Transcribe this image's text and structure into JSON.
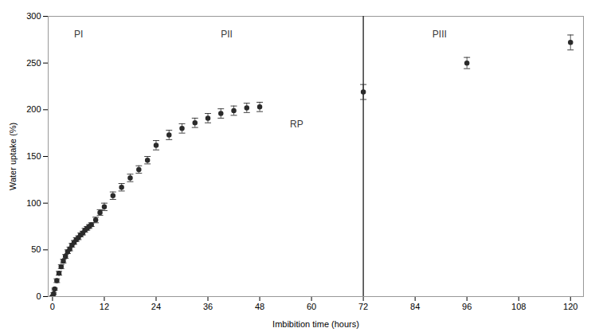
{
  "chart_data": {
    "type": "errorbar",
    "xlabel": "Imbibition time (hours)",
    "ylabel": "Water uptake (%)",
    "x": [
      0,
      0.25,
      0.5,
      1,
      1.5,
      2,
      2.5,
      3,
      3.5,
      4,
      4.5,
      5,
      5.5,
      6,
      6.5,
      7,
      7.5,
      8,
      8.5,
      9,
      10,
      11,
      12,
      14,
      16,
      18,
      20,
      22,
      24,
      27,
      30,
      33,
      36,
      39,
      42,
      45,
      48,
      72,
      96,
      120
    ],
    "values": [
      0,
      3,
      8,
      17,
      25,
      32,
      38,
      43,
      48,
      51,
      55,
      58,
      61,
      63,
      66,
      68,
      71,
      73,
      75,
      77,
      82,
      90,
      96,
      108,
      117,
      127,
      136,
      146,
      162,
      173,
      180,
      186,
      191,
      196,
      199,
      202,
      203,
      219,
      250,
      272
    ],
    "yerr": [
      1,
      1,
      1,
      2,
      2,
      2,
      2,
      2,
      2,
      2,
      2,
      2,
      2,
      2,
      2,
      2,
      2,
      2,
      2,
      2,
      3,
      3,
      4,
      4,
      4,
      4,
      4,
      4,
      5,
      5,
      5,
      5,
      5,
      5,
      5,
      5,
      5,
      8,
      6,
      8
    ],
    "xlim": [
      -1,
      123
    ],
    "ylim": [
      0,
      300
    ],
    "xticks": [
      0,
      12,
      24,
      36,
      48,
      60,
      72,
      84,
      96,
      108,
      120
    ],
    "yticks": [
      0,
      50,
      100,
      150,
      200,
      250,
      300
    ],
    "vlines": [
      72
    ],
    "annotations": [
      {
        "text": "PI",
        "x": 5,
        "y": 285
      },
      {
        "text": "PII",
        "x": 39,
        "y": 285
      },
      {
        "text": "PIII",
        "x": 88,
        "y": 285
      },
      {
        "text": "RP",
        "x": 55,
        "y": 188
      }
    ],
    "color": "#2b2b2b",
    "marker": "circle",
    "grid": false
  }
}
